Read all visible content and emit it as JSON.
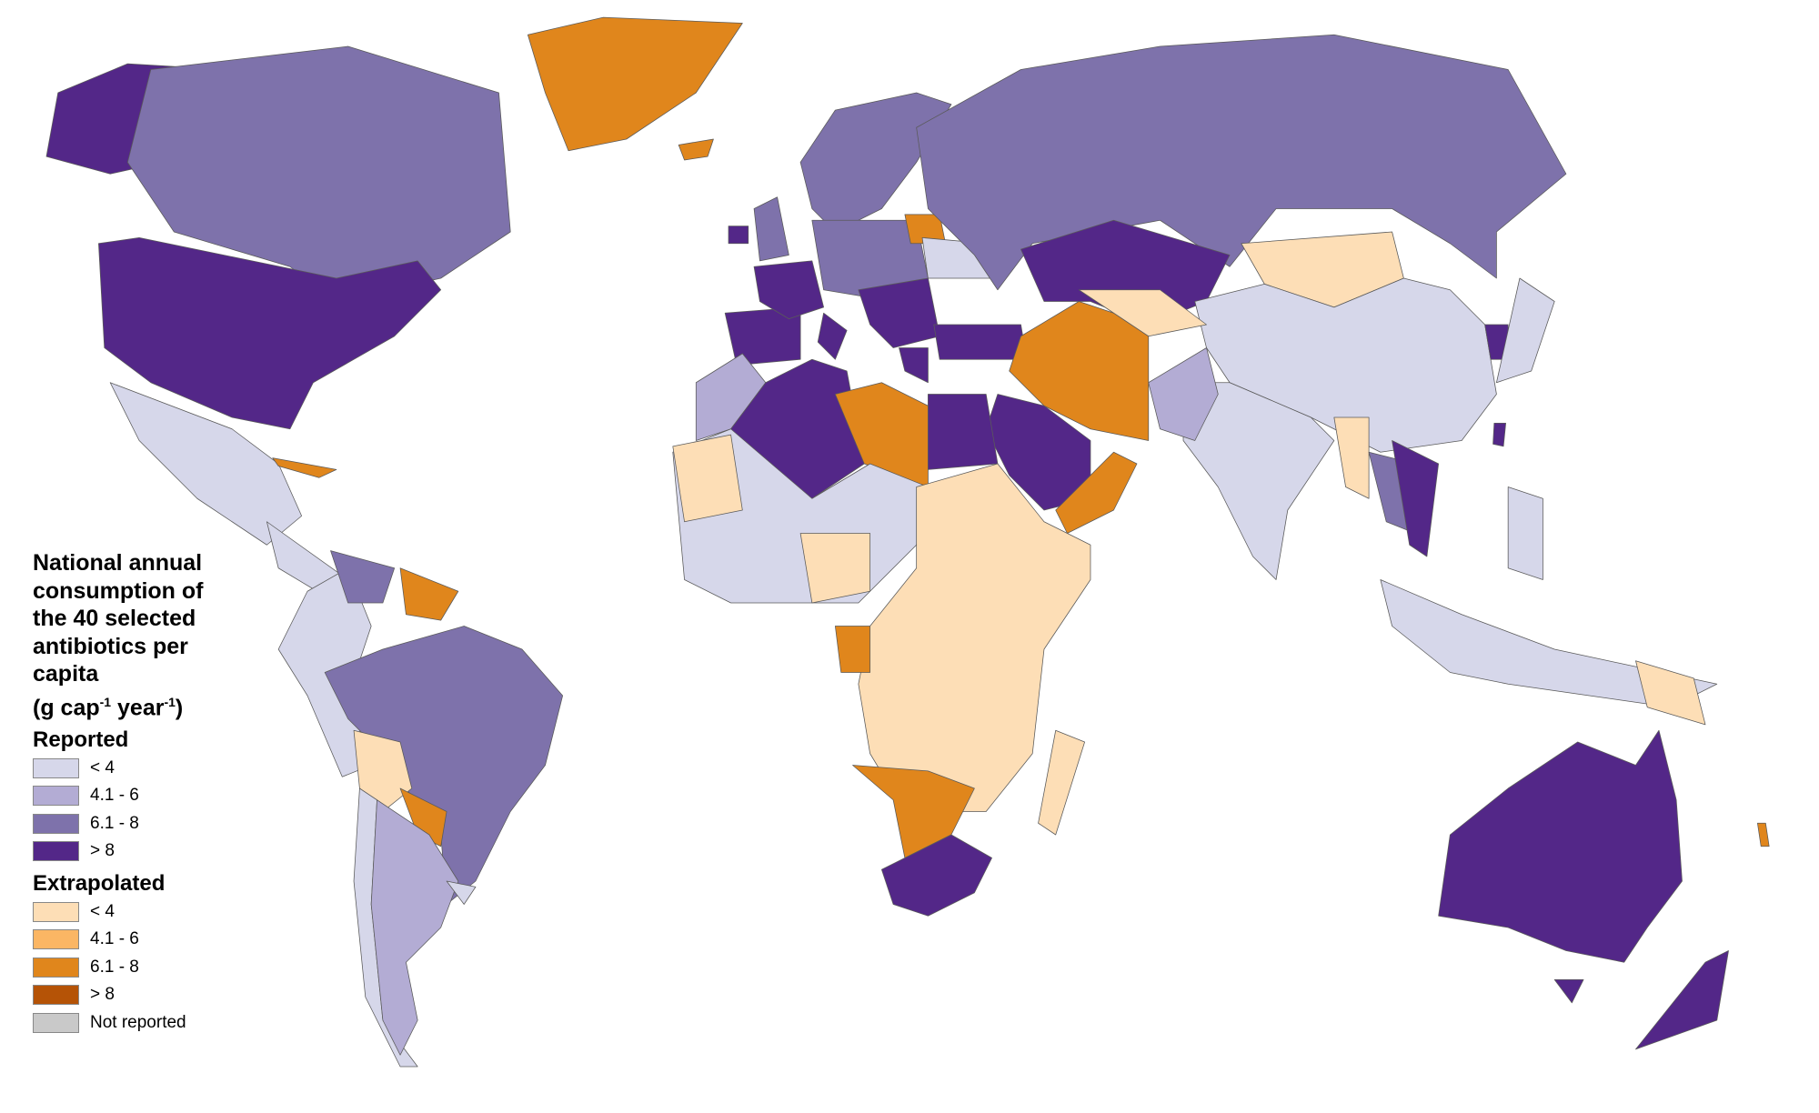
{
  "legend": {
    "title_lines": [
      "National annual",
      "consumption of",
      "the 40 selected",
      "antibiotics per",
      "capita"
    ],
    "unit": {
      "prefix": "(g cap",
      "exp1": "-1",
      "mid": " year",
      "exp2": "-1",
      "suffix": ")"
    },
    "groups": [
      {
        "heading": "Reported",
        "items": [
          {
            "key": "r1",
            "label": "< 4",
            "color": "#d6d7ea"
          },
          {
            "key": "r2",
            "label": "4.1 - 6",
            "color": "#b3acd4"
          },
          {
            "key": "r3",
            "label": "6.1 - 8",
            "color": "#7e72ab"
          },
          {
            "key": "r4",
            "label": "> 8",
            "color": "#532788"
          }
        ]
      },
      {
        "heading": "Extrapolated",
        "items": [
          {
            "key": "e1",
            "label": "< 4",
            "color": "#fddeb6"
          },
          {
            "key": "e2",
            "label": "4.1 - 6",
            "color": "#fbb664"
          },
          {
            "key": "e3",
            "label": "6.1 - 8",
            "color": "#e0861c"
          },
          {
            "key": "e4",
            "label": "> 8",
            "color": "#b55306"
          },
          {
            "key": "nr",
            "label": "Not reported",
            "color": "#c9c9c9"
          }
        ]
      }
    ]
  }
}
